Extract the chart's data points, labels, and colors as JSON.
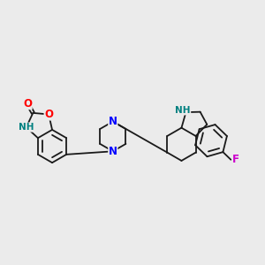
{
  "bg_color": "#ebebeb",
  "bond_color": "#1a1a1a",
  "bond_width": 1.3,
  "atom_colors": {
    "N": "#0000ff",
    "O": "#ff0000",
    "F": "#cc00cc",
    "NH": "#008080"
  }
}
